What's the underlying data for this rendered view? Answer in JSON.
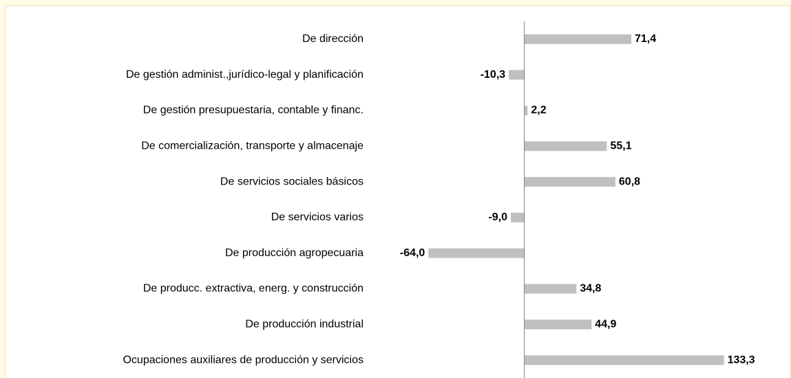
{
  "chart_data": {
    "type": "bar",
    "orientation": "horizontal",
    "categories": [
      "De dirección",
      "De gestión administ.,jurídico-legal y planificación",
      "De gestión presupuestaria, contable y financ.",
      "De comercialización, transporte y almacenaje",
      "De servicios sociales básicos",
      "De servicios varios",
      "De producción agropecuaria",
      "De producc. extractiva, energ. y construcción",
      "De producción industrial",
      "Ocupaciones auxiliares de producción y servicios"
    ],
    "values": [
      71.4,
      -10.3,
      2.2,
      55.1,
      60.8,
      -9.0,
      -64.0,
      34.8,
      44.9,
      133.3
    ],
    "value_labels": [
      "71,4",
      "-10,3",
      "2,2",
      "55,1",
      "60,8",
      "-9,0",
      "-64,0",
      "34,8",
      "44,9",
      "133,3"
    ],
    "color": "#c0c0c0",
    "xlim": [
      -100,
      150
    ]
  }
}
